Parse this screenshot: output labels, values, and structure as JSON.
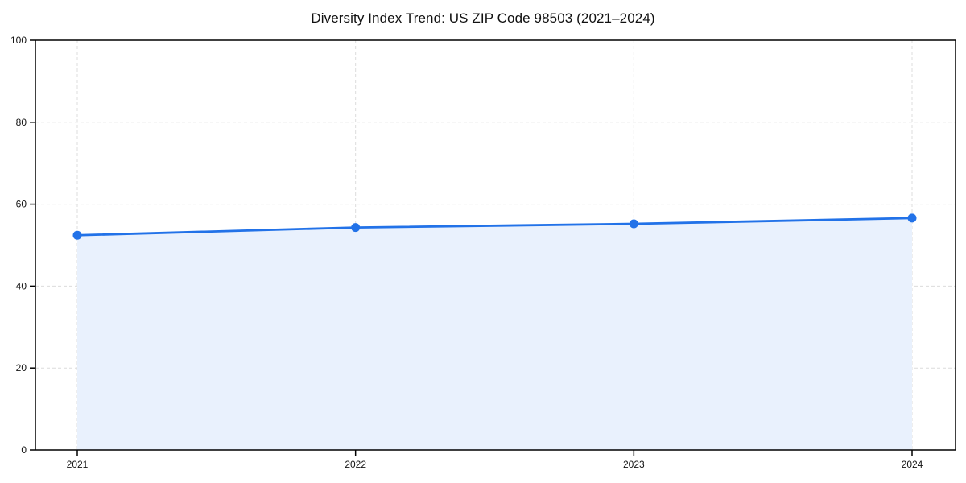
{
  "chart_data": {
    "type": "line",
    "fill_under": true,
    "title": "Diversity Index Trend: US ZIP Code 98503 (2021–2024)",
    "x": [
      "2021",
      "2022",
      "2023",
      "2024"
    ],
    "values": [
      52.4,
      54.3,
      55.2,
      56.6
    ],
    "xlabel": "",
    "ylabel": "",
    "ylim": [
      0,
      100
    ],
    "yticks": [
      0,
      20,
      40,
      60,
      80,
      100
    ],
    "grid": "dashed",
    "legend": "none",
    "colors": {
      "line": "#2272e8",
      "marker": "#2272e8",
      "fill": "#e9f1fd",
      "grid": "#dcdcdc",
      "frame": "#000000",
      "background": "#ffffff"
    }
  }
}
